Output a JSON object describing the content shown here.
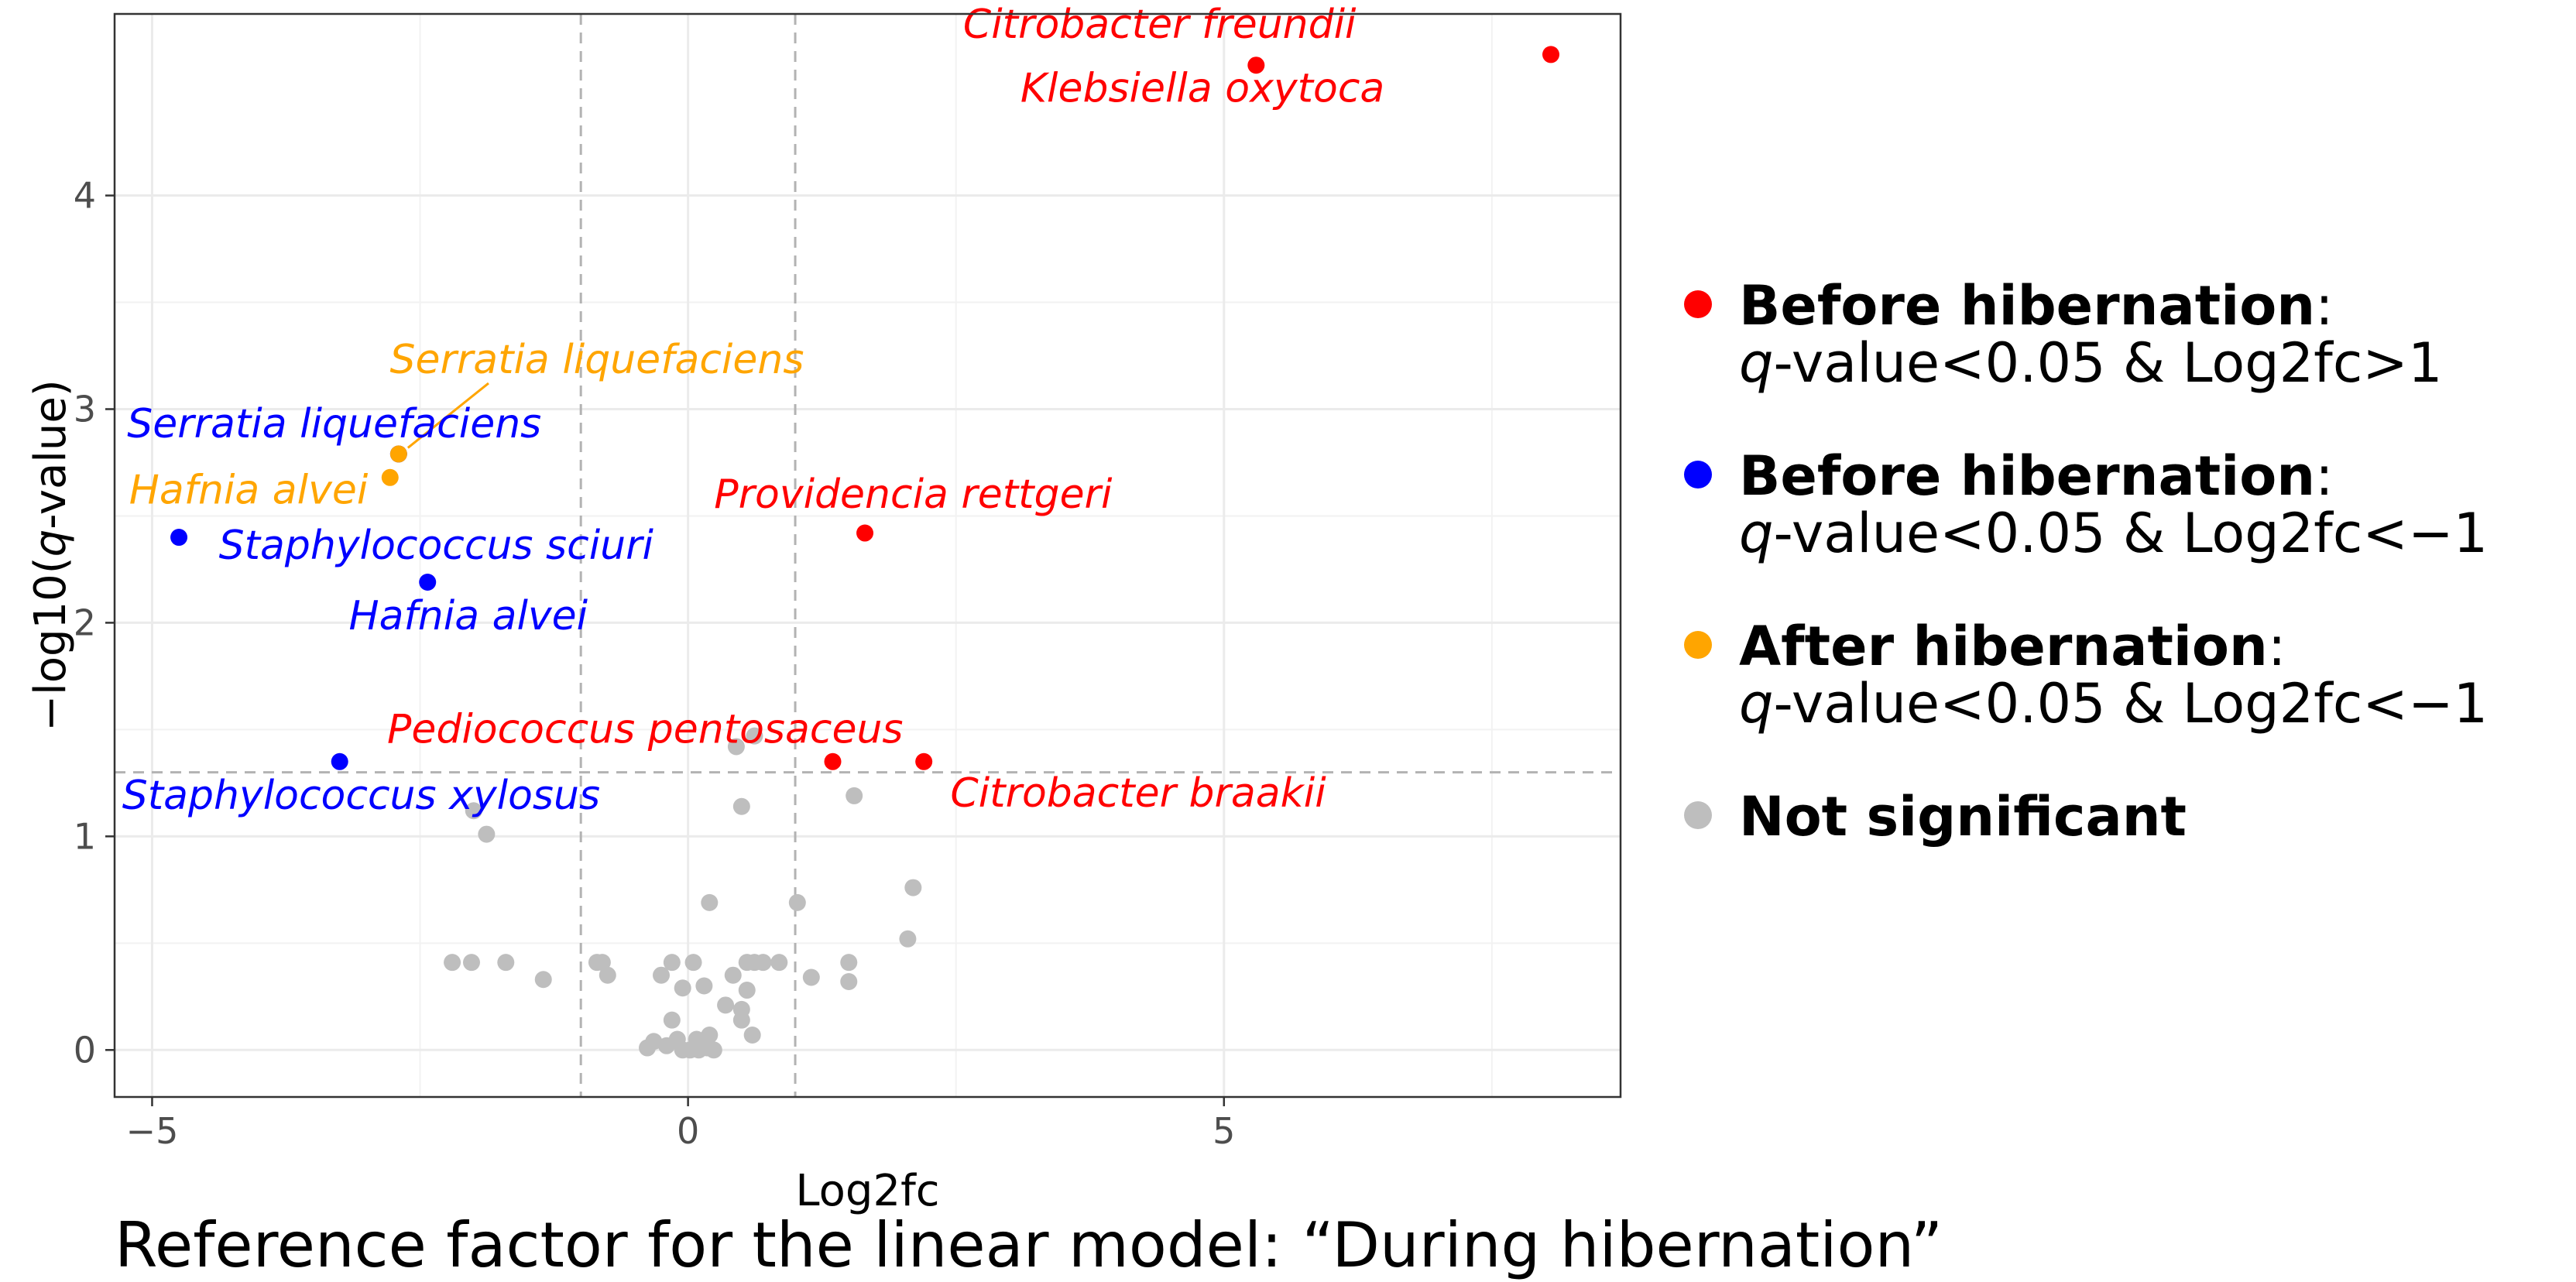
{
  "chart_data": {
    "type": "scatter",
    "xlabel": "Log2fc",
    "ylabel_prefix": "−log10(",
    "ylabel_italic": "q",
    "ylabel_suffix": "-value)",
    "xlim": [
      -5.35,
      8.7
    ],
    "ylim": [
      -0.22,
      4.85
    ],
    "x_ticks": [
      {
        "value": -5,
        "label": "−5"
      },
      {
        "value": 0,
        "label": "0"
      },
      {
        "value": 5,
        "label": "5"
      }
    ],
    "y_ticks": [
      {
        "value": 0,
        "label": "0"
      },
      {
        "value": 1,
        "label": "1"
      },
      {
        "value": 2,
        "label": "2"
      },
      {
        "value": 3,
        "label": "3"
      },
      {
        "value": 4,
        "label": "4"
      }
    ],
    "grid": true,
    "vlines": [
      -1,
      1
    ],
    "hline": 1.3,
    "legend_position": "right",
    "caption": "Reference factor for the linear model: “During hibernation”",
    "colors": {
      "before_up": "#ff0000",
      "before_down": "#0000ff",
      "after_down": "#ffa500",
      "ns": "#bebebe"
    },
    "series": [
      {
        "key": "before_up",
        "legend_bold": "Before hibernation",
        "legend_colon": ":",
        "legend_q": "q",
        "legend_rest": "-value<0.05 & Log2fc>1",
        "points": [
          {
            "x": 8.05,
            "y": 4.66,
            "label": "",
            "lx": 8.05,
            "ly": 4.66
          },
          {
            "x": 5.3,
            "y": 4.61,
            "label": "Citrobacter freundii",
            "lx": 4.4,
            "ly": 4.8
          },
          {
            "x": 5.3,
            "y": 4.61,
            "label": "Klebsiella oxytoca",
            "lx": 4.8,
            "ly": 4.5
          },
          {
            "x": 1.65,
            "y": 2.42,
            "label": "Providencia rettgeri",
            "lx": 2.1,
            "ly": 2.6
          },
          {
            "x": 1.35,
            "y": 1.35,
            "label": "Pediococcus pentosaceus",
            "lx": -0.4,
            "ly": 1.5
          },
          {
            "x": 2.2,
            "y": 1.35,
            "label": "Citrobacter braakii",
            "lx": 4.2,
            "ly": 1.2
          }
        ]
      },
      {
        "key": "before_down",
        "legend_bold": "Before hibernation",
        "legend_colon": ":",
        "legend_q": "q",
        "legend_rest": "-value<0.05 & Log2fc<−1",
        "points": [
          {
            "x": -2.7,
            "y": 2.79,
            "label": "Serratia liquefaciens",
            "lx": -3.3,
            "ly": 2.93
          },
          {
            "x": -4.75,
            "y": 2.4,
            "label": "Staphylococcus sciuri",
            "lx": -2.35,
            "ly": 2.36
          },
          {
            "x": -2.43,
            "y": 2.19,
            "label": "Hafnia alvei",
            "lx": -2.05,
            "ly": 2.03
          },
          {
            "x": -3.25,
            "y": 1.35,
            "label": "Staphylococcus xylosus",
            "lx": -3.05,
            "ly": 1.19
          }
        ]
      },
      {
        "key": "after_down",
        "legend_bold": "After hibernation",
        "legend_colon": ":",
        "legend_q": "q",
        "legend_rest": "-value<0.05 & Log2fc<−1",
        "points": [
          {
            "x": -2.78,
            "y": 2.68,
            "label": "Hafnia alvei",
            "lx": -4.1,
            "ly": 2.62
          },
          {
            "x": -2.7,
            "y": 2.79,
            "label": "Serratia liquefaciens",
            "lx": -0.85,
            "ly": 3.23
          }
        ]
      },
      {
        "key": "ns",
        "legend_bold": "Not significant",
        "legend_colon": "",
        "legend_q": "",
        "legend_rest": "",
        "points": [
          {
            "x": 0.45,
            "y": 1.42
          },
          {
            "x": 0.62,
            "y": 1.47
          },
          {
            "x": 0.5,
            "y": 1.14
          },
          {
            "x": 1.55,
            "y": 1.19
          },
          {
            "x": -2.0,
            "y": 1.12
          },
          {
            "x": -1.88,
            "y": 1.01
          },
          {
            "x": 2.1,
            "y": 0.76
          },
          {
            "x": 0.2,
            "y": 0.69
          },
          {
            "x": 1.02,
            "y": 0.69
          },
          {
            "x": 2.05,
            "y": 0.52
          },
          {
            "x": -2.2,
            "y": 0.41
          },
          {
            "x": -2.02,
            "y": 0.41
          },
          {
            "x": -1.7,
            "y": 0.41
          },
          {
            "x": -0.85,
            "y": 0.41
          },
          {
            "x": -0.8,
            "y": 0.41
          },
          {
            "x": -0.15,
            "y": 0.41
          },
          {
            "x": 0.05,
            "y": 0.41
          },
          {
            "x": 0.55,
            "y": 0.41
          },
          {
            "x": 0.62,
            "y": 0.41
          },
          {
            "x": 0.7,
            "y": 0.41
          },
          {
            "x": 0.85,
            "y": 0.41
          },
          {
            "x": 1.5,
            "y": 0.41
          },
          {
            "x": -1.35,
            "y": 0.33
          },
          {
            "x": -0.75,
            "y": 0.35
          },
          {
            "x": 1.15,
            "y": 0.34
          },
          {
            "x": 1.5,
            "y": 0.32
          },
          {
            "x": -0.25,
            "y": 0.35
          },
          {
            "x": 0.42,
            "y": 0.35
          },
          {
            "x": -0.05,
            "y": 0.29
          },
          {
            "x": 0.15,
            "y": 0.3
          },
          {
            "x": 0.55,
            "y": 0.28
          },
          {
            "x": 0.35,
            "y": 0.21
          },
          {
            "x": 0.5,
            "y": 0.19
          },
          {
            "x": -0.15,
            "y": 0.14
          },
          {
            "x": 0.5,
            "y": 0.14
          },
          {
            "x": -0.32,
            "y": 0.04
          },
          {
            "x": -0.1,
            "y": 0.05
          },
          {
            "x": 0.08,
            "y": 0.05
          },
          {
            "x": 0.2,
            "y": 0.07
          },
          {
            "x": 0.6,
            "y": 0.07
          },
          {
            "x": -0.38,
            "y": 0.01
          },
          {
            "x": -0.05,
            "y": 0.0
          },
          {
            "x": 0.02,
            "y": 0.0
          },
          {
            "x": 0.1,
            "y": 0.0
          },
          {
            "x": 0.18,
            "y": 0.01
          },
          {
            "x": 0.24,
            "y": 0.0
          },
          {
            "x": -0.2,
            "y": 0.02
          }
        ]
      }
    ]
  }
}
